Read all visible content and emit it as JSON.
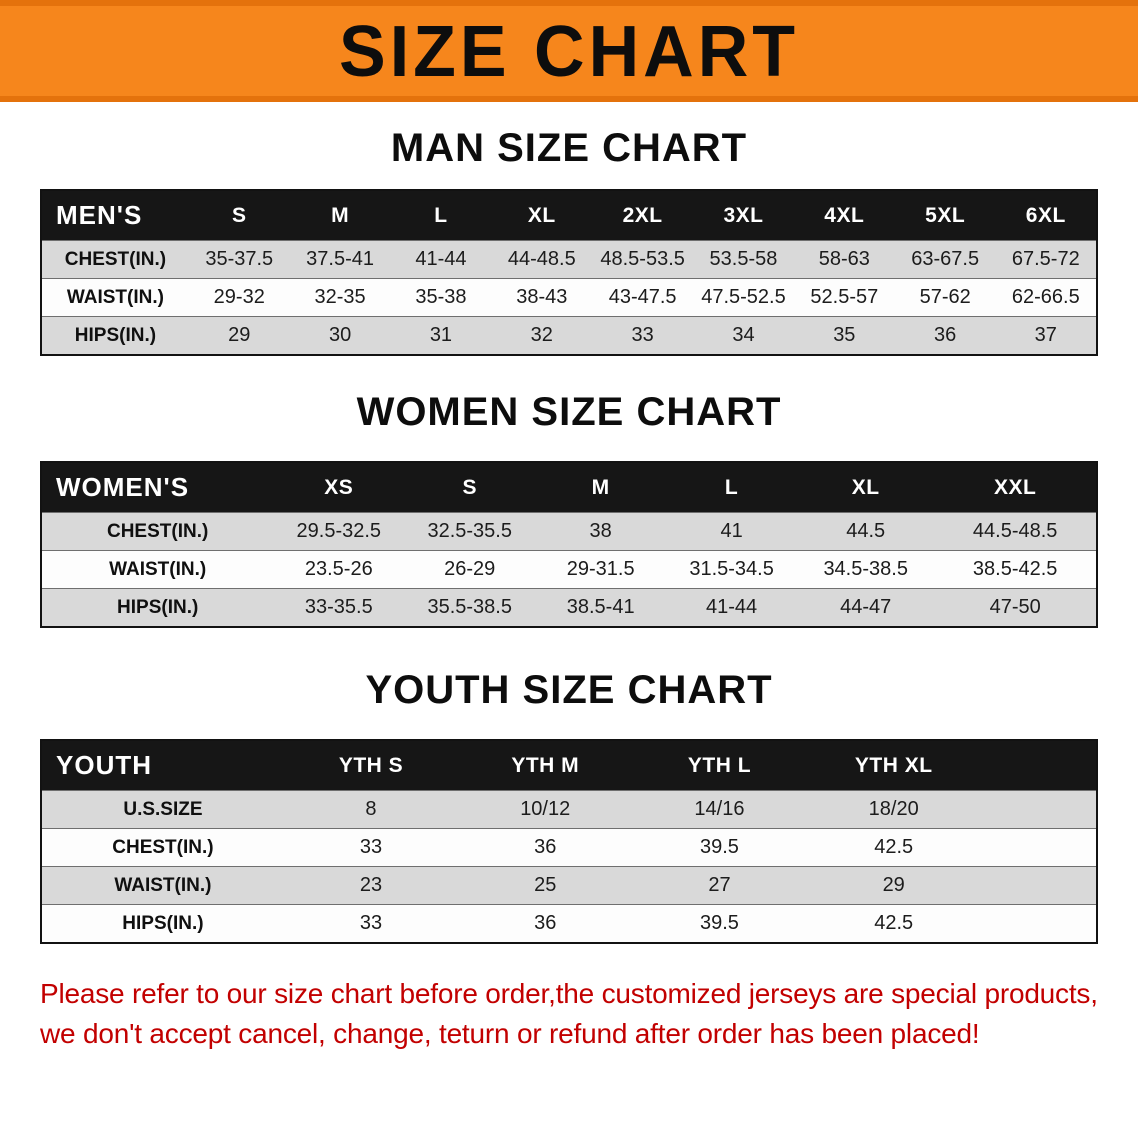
{
  "page_title": "SIZE CHART",
  "colors": {
    "banner_bg": "#f6861c",
    "banner_border": "#e4720c",
    "header_bg": "#161616",
    "stripe": "#d9d9d9",
    "footer_text": "#c20000"
  },
  "sections": [
    {
      "heading": "MAN SIZE CHART",
      "table": {
        "header": [
          "MEN'S",
          "S",
          "M",
          "L",
          "XL",
          "2XL",
          "3XL",
          "4XL",
          "5XL",
          "6XL"
        ],
        "rows": [
          [
            "CHEST(IN.)",
            "35-37.5",
            "37.5-41",
            "41-44",
            "44-48.5",
            "48.5-53.5",
            "53.5-58",
            "58-63",
            "63-67.5",
            "67.5-72"
          ],
          [
            "WAIST(IN.)",
            "29-32",
            "32-35",
            "35-38",
            "38-43",
            "43-47.5",
            "47.5-52.5",
            "52.5-57",
            "57-62",
            "62-66.5"
          ],
          [
            "HIPS(IN.)",
            "29",
            "30",
            "31",
            "32",
            "33",
            "34",
            "35",
            "36",
            "37"
          ]
        ]
      }
    },
    {
      "heading": "WOMEN SIZE CHART",
      "table": {
        "header": [
          "WOMEN'S",
          "XS",
          "S",
          "M",
          "L",
          "XL",
          "XXL"
        ],
        "rows": [
          [
            "CHEST(IN.)",
            "29.5-32.5",
            "32.5-35.5",
            "38",
            "41",
            "44.5",
            "44.5-48.5"
          ],
          [
            "WAIST(IN.)",
            "23.5-26",
            "26-29",
            "29-31.5",
            "31.5-34.5",
            "34.5-38.5",
            "38.5-42.5"
          ],
          [
            "HIPS(IN.)",
            "33-35.5",
            "35.5-38.5",
            "38.5-41",
            "41-44",
            "44-47",
            "47-50"
          ]
        ]
      }
    },
    {
      "heading": "YOUTH SIZE CHART",
      "table": {
        "header": [
          "YOUTH",
          "YTH S",
          "YTH M",
          "YTH L",
          "YTH XL"
        ],
        "rows": [
          [
            "U.S.SIZE",
            "8",
            "10/12",
            "14/16",
            "18/20"
          ],
          [
            "CHEST(IN.)",
            "33",
            "36",
            "39.5",
            "42.5"
          ],
          [
            "WAIST(IN.)",
            "23",
            "25",
            "27",
            "29"
          ],
          [
            "HIPS(IN.)",
            "33",
            "36",
            "39.5",
            "42.5"
          ]
        ]
      }
    }
  ],
  "footer": {
    "line1": "Please refer to our size chart before order,the customized jerseys are special products,",
    "line2": "we don't accept cancel, change, teturn or refund after order has been placed!"
  }
}
